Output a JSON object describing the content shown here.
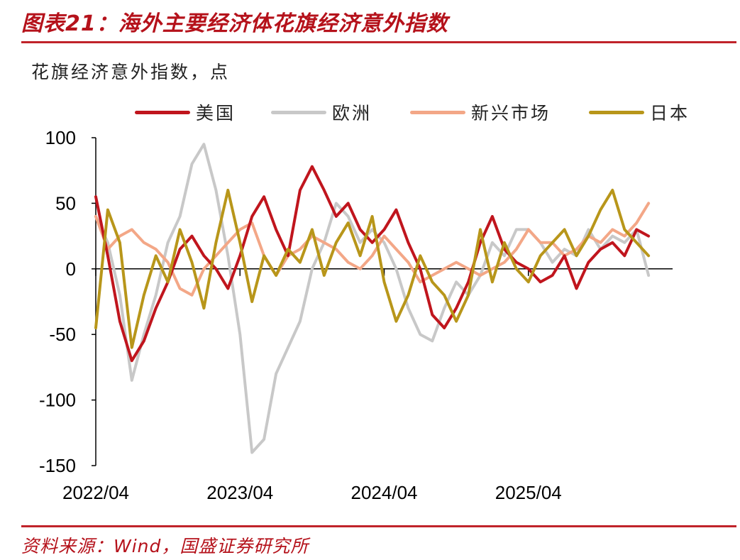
{
  "header": {
    "title": "图表21：海外主要经济体花旗经济意外指数",
    "unit": "花旗经济意外指数，点"
  },
  "footer": {
    "source": "资料来源：Wind，国盛证券研究所"
  },
  "colors": {
    "accent": "#c0232a",
    "us": "#c0151d",
    "europe": "#c8c8c8",
    "em": "#f3a787",
    "japan": "#b8961a"
  },
  "chart_data": {
    "type": "line",
    "title": "",
    "xlabel": "",
    "ylabel": "花旗经济意外指数，点",
    "ylim": [
      -150,
      100
    ],
    "yticks": [
      100,
      50,
      0,
      -50,
      -100,
      -150
    ],
    "xlim": [
      "2022-04",
      "2026-04"
    ],
    "xticks": [
      {
        "label": "2022/04",
        "value": "2022-04"
      },
      {
        "label": "2023/04",
        "value": "2023-04"
      },
      {
        "label": "2024/04",
        "value": "2024-04"
      },
      {
        "label": "2025/04",
        "value": "2025-04"
      }
    ],
    "grid": false,
    "legend_position": "top",
    "x": [
      "2022-04",
      "2022-05",
      "2022-06",
      "2022-07",
      "2022-08",
      "2022-09",
      "2022-10",
      "2022-11",
      "2022-12",
      "2023-01",
      "2023-02",
      "2023-03",
      "2023-04",
      "2023-05",
      "2023-06",
      "2023-07",
      "2023-08",
      "2023-09",
      "2023-10",
      "2023-11",
      "2023-12",
      "2024-01",
      "2024-02",
      "2024-03",
      "2024-04",
      "2024-05",
      "2024-06",
      "2024-07",
      "2024-08",
      "2024-09",
      "2024-10",
      "2024-11",
      "2024-12",
      "2025-01",
      "2025-02",
      "2025-03",
      "2025-04",
      "2025-05",
      "2025-06",
      "2025-07",
      "2025-08",
      "2025-09",
      "2025-10",
      "2025-11",
      "2025-12",
      "2026-01",
      "2026-02"
    ],
    "series": [
      {
        "name": "美国",
        "key": "us",
        "values": [
          55,
          10,
          -40,
          -70,
          -55,
          -30,
          -10,
          15,
          25,
          10,
          0,
          -15,
          10,
          40,
          55,
          30,
          10,
          60,
          78,
          60,
          40,
          50,
          30,
          20,
          30,
          45,
          20,
          0,
          -35,
          -45,
          -30,
          -10,
          20,
          40,
          15,
          5,
          0,
          -10,
          -5,
          10,
          -15,
          5,
          15,
          20,
          10,
          30,
          25
        ]
      },
      {
        "name": "欧洲",
        "key": "europe",
        "values": [
          40,
          20,
          -20,
          -85,
          -50,
          -20,
          20,
          40,
          80,
          95,
          60,
          10,
          -50,
          -140,
          -130,
          -80,
          -60,
          -40,
          0,
          20,
          50,
          40,
          20,
          30,
          20,
          0,
          -30,
          -50,
          -55,
          -30,
          -10,
          -20,
          -5,
          20,
          10,
          30,
          30,
          20,
          5,
          15,
          10,
          30,
          15,
          25,
          20,
          30,
          -5
        ]
      },
      {
        "name": "新兴市场",
        "key": "em",
        "values": [
          40,
          15,
          25,
          30,
          20,
          15,
          5,
          -15,
          -20,
          0,
          10,
          20,
          30,
          35,
          10,
          -5,
          10,
          15,
          25,
          20,
          15,
          5,
          0,
          10,
          25,
          15,
          5,
          -10,
          -5,
          0,
          5,
          0,
          -5,
          0,
          5,
          15,
          30,
          20,
          20,
          10,
          15,
          25,
          20,
          30,
          25,
          35,
          50
        ]
      },
      {
        "name": "日本",
        "key": "japan",
        "values": [
          -45,
          45,
          20,
          -60,
          -20,
          10,
          -10,
          30,
          5,
          -30,
          20,
          60,
          20,
          -25,
          10,
          -5,
          15,
          5,
          30,
          -5,
          20,
          35,
          10,
          40,
          -10,
          -40,
          -20,
          10,
          -10,
          -20,
          -40,
          -20,
          30,
          -10,
          20,
          0,
          -10,
          10,
          20,
          30,
          10,
          25,
          45,
          60,
          30,
          20,
          10
        ]
      }
    ]
  }
}
